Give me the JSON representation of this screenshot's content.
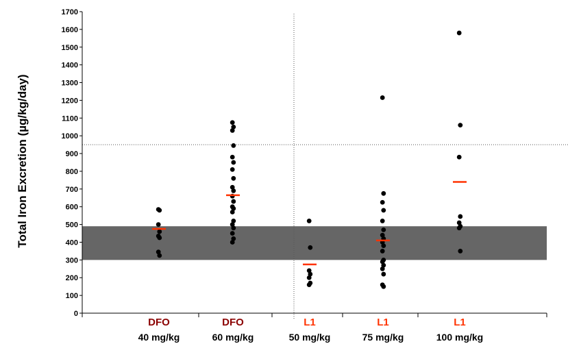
{
  "chart_data": {
    "type": "scatter",
    "ylabel": "Total Iron Excretion (µg/kg/day)",
    "xlabel": "",
    "ylim": [
      0,
      1700
    ],
    "yticks": [
      0,
      100,
      200,
      300,
      400,
      500,
      600,
      700,
      800,
      900,
      1000,
      1100,
      1200,
      1300,
      1400,
      1500,
      1600,
      1700
    ],
    "categories": [
      {
        "drug": "DFO",
        "dose": "40 mg/kg",
        "drug_color": "#8b0000"
      },
      {
        "drug": "DFO",
        "dose": "60 mg/kg",
        "drug_color": "#8b0000"
      },
      {
        "drug": "L1",
        "dose": "50 mg/kg",
        "drug_color": "#ff3300"
      },
      {
        "drug": "L1",
        "dose": "75 mg/kg",
        "drug_color": "#ff3300"
      },
      {
        "drug": "L1",
        "dose": "100 mg/kg",
        "drug_color": "#ff3300"
      }
    ],
    "points": [
      [
        585,
        580,
        500,
        460,
        435,
        425,
        345,
        325
      ],
      [
        1075,
        1050,
        1030,
        945,
        880,
        850,
        810,
        760,
        710,
        690,
        660,
        630,
        600,
        590,
        570,
        520,
        500,
        480,
        450,
        420,
        400
      ],
      [
        520,
        370,
        240,
        220,
        200,
        170,
        160
      ],
      [
        1215,
        675,
        625,
        580,
        520,
        470,
        440,
        420,
        400,
        380,
        350,
        300,
        290,
        270,
        250,
        220,
        160,
        150
      ],
      [
        1580,
        1060,
        880,
        545,
        510,
        490,
        480,
        350
      ]
    ],
    "means": [
      475,
      665,
      275,
      410,
      740
    ],
    "shaded_band": [
      300,
      490
    ],
    "reference_line_y": 950,
    "divider_after_category": 2,
    "colors": {
      "points": "#000000",
      "mean": "#ff3300",
      "band": "#666666",
      "dfo_label": "#8b0000",
      "l1_label": "#ff3300"
    }
  }
}
